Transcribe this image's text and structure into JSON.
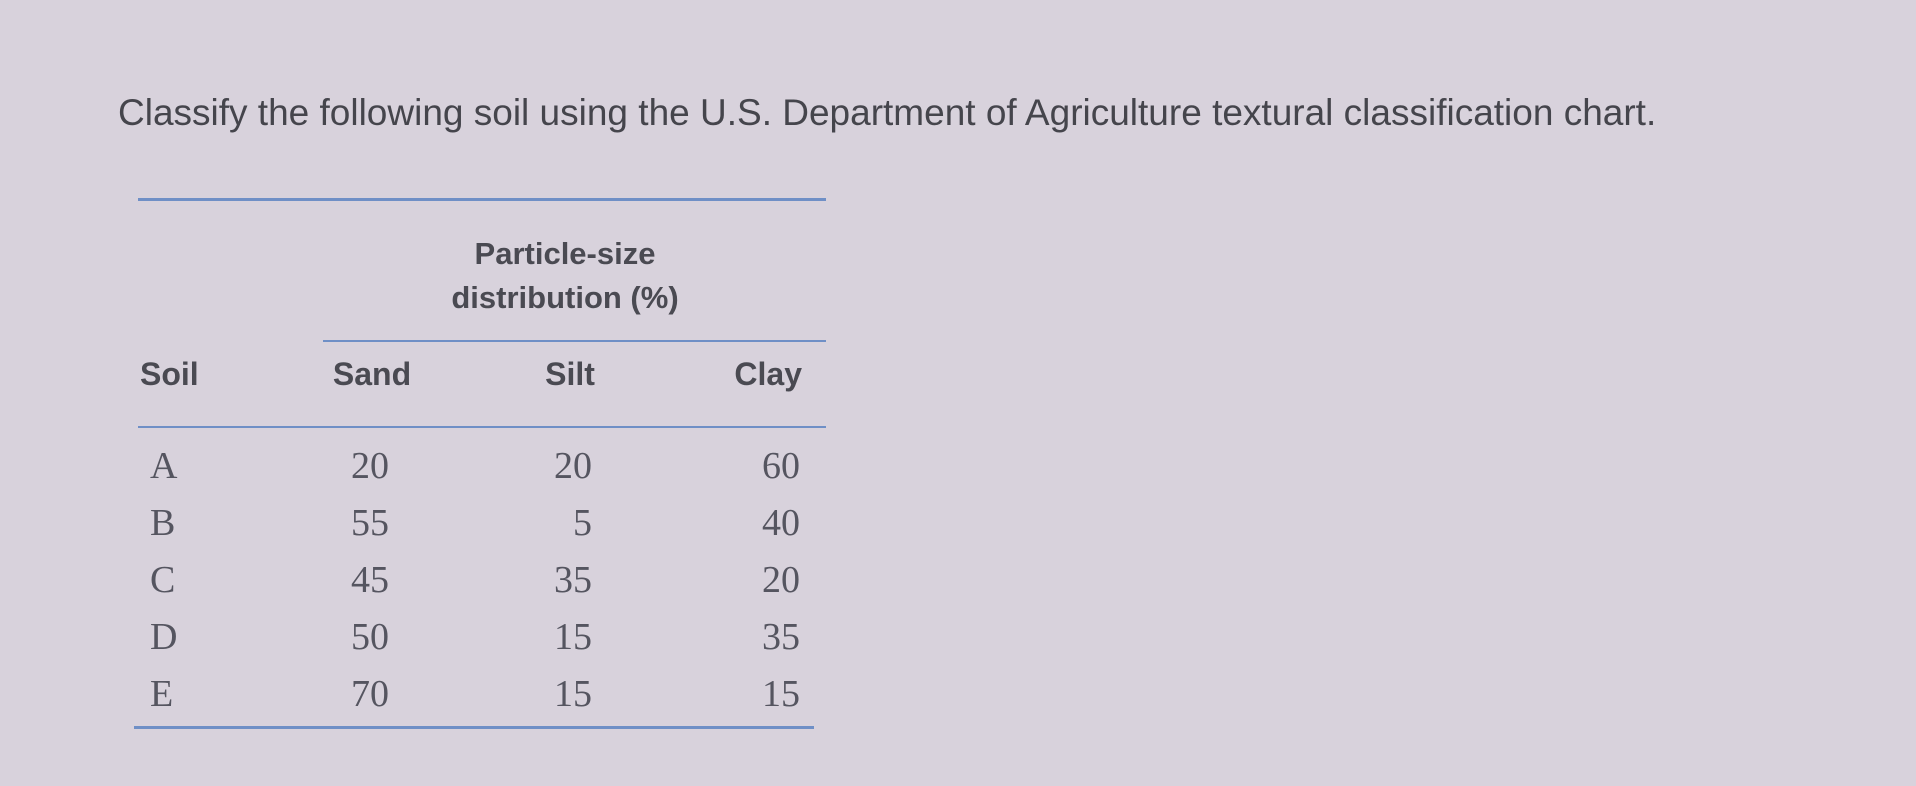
{
  "prompt": "Classify the following soil using the U.S. Department of Agriculture textural classification chart.",
  "table": {
    "group_header": "Particle-size distribution (%)",
    "columns": [
      "Soil",
      "Sand",
      "Silt",
      "Clay"
    ],
    "rows": [
      [
        "A",
        20,
        20,
        60
      ],
      [
        "B",
        55,
        5,
        40
      ],
      [
        "C",
        45,
        35,
        20
      ],
      [
        "D",
        50,
        15,
        35
      ],
      [
        "E",
        70,
        15,
        15
      ]
    ]
  }
}
